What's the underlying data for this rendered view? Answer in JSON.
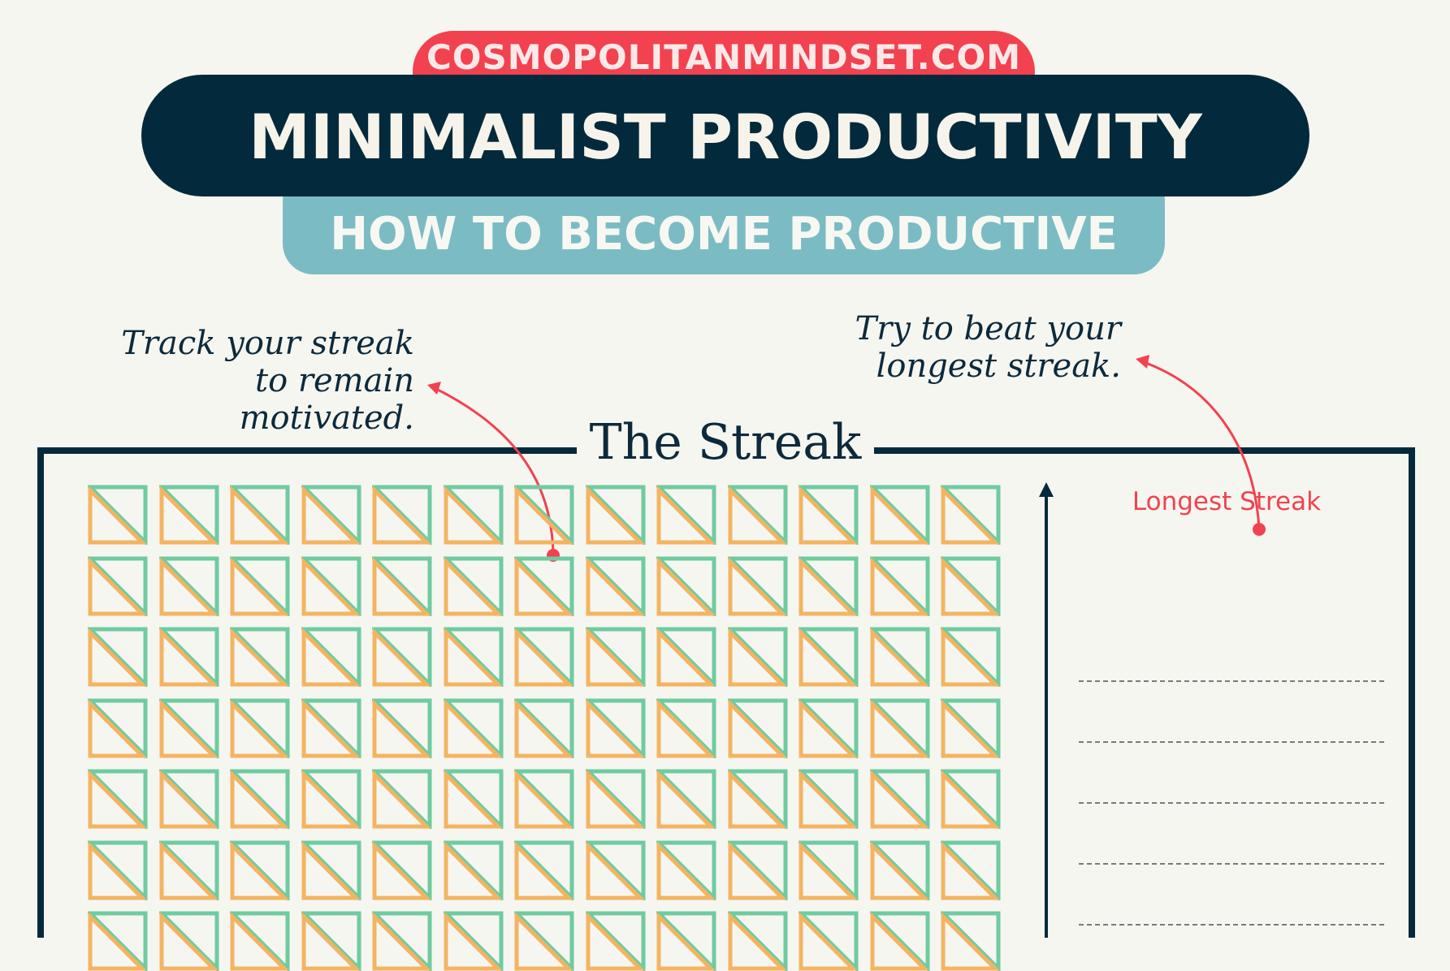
{
  "header": {
    "site": "COSMOPOLITANMINDSET.COM",
    "title": "MINIMALIST PRODUCTIVITY",
    "subtitle": "HOW TO BECOME PRODUCTIVE"
  },
  "annotations": {
    "left": "Track your streak to remain motivated.",
    "right": "Try to beat your longest streak."
  },
  "streak": {
    "title": "The Streak",
    "longest_label": "Longest Streak",
    "grid": {
      "columns": 13,
      "rows": 7
    },
    "dashed_lines": 5
  },
  "colors": {
    "accent_red": "#f2424f",
    "navy": "#032a3c",
    "teal": "#7bbcc4",
    "green": "#6fcba0",
    "orange": "#f3b462"
  }
}
